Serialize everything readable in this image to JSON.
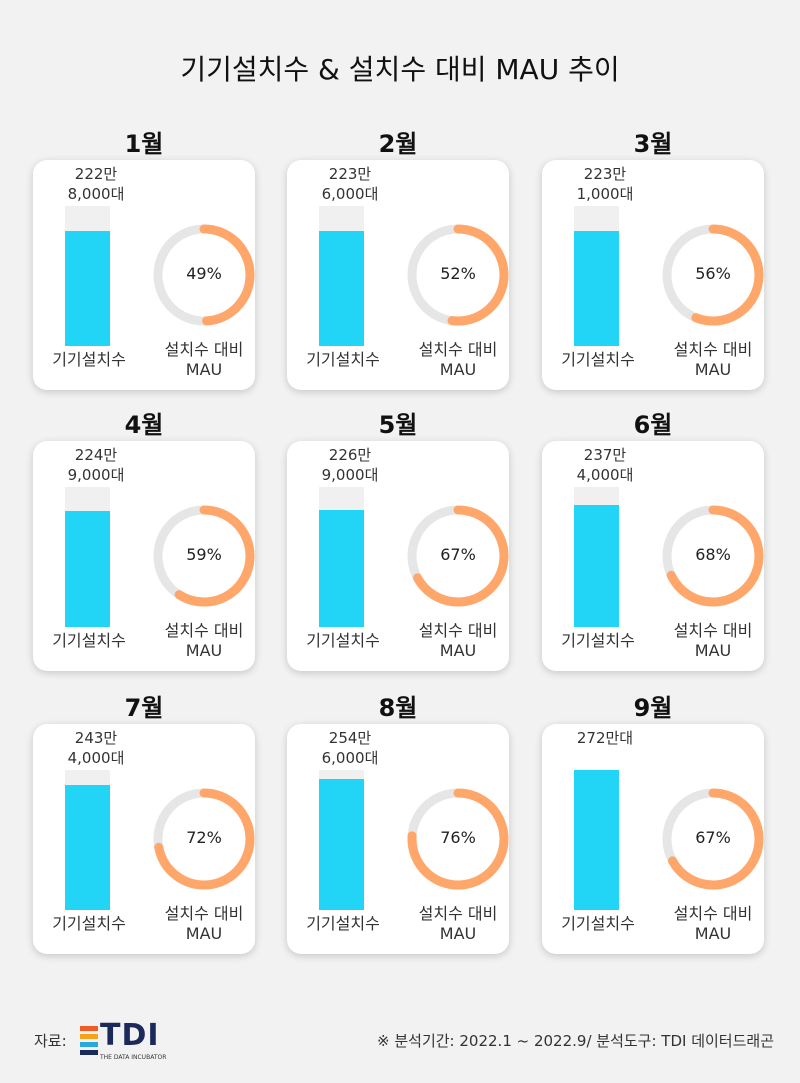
{
  "title": "기기설치수 & 설치수 대비 MAU 추이",
  "series_labels": {
    "installs": "기기설치수",
    "mau_ratio_line1": "설치수 대비",
    "mau_ratio_line2": "MAU"
  },
  "colors": {
    "bar": "#22d4f5",
    "bar_track": "#f0f0f0",
    "donut": "#ffa66b",
    "donut_track": "#e6e6e6"
  },
  "chart_data": {
    "type": "bar",
    "title": "기기설치수 & 설치수 대비 MAU 추이",
    "categories": [
      "1월",
      "2월",
      "3월",
      "4월",
      "5월",
      "6월",
      "7월",
      "8월",
      "9월"
    ],
    "series": [
      {
        "name": "기기설치수",
        "values": [
          2228000,
          2236000,
          2231000,
          2249000,
          2269000,
          2374000,
          2434000,
          2546000,
          2720000
        ],
        "labels": [
          [
            "222만",
            "8,000대"
          ],
          [
            "223만",
            "6,000대"
          ],
          [
            "223만",
            "1,000대"
          ],
          [
            "224만",
            "9,000대"
          ],
          [
            "226만",
            "9,000대"
          ],
          [
            "237만",
            "4,000대"
          ],
          [
            "243만",
            "4,000대"
          ],
          [
            "254만",
            "6,000대"
          ],
          [
            "272만대"
          ]
        ]
      },
      {
        "name": "설치수 대비 MAU",
        "values": [
          49,
          52,
          56,
          59,
          67,
          68,
          72,
          76,
          67
        ],
        "labels": [
          "49%",
          "52%",
          "56%",
          "59%",
          "67%",
          "68%",
          "72%",
          "76%",
          "67%"
        ]
      }
    ]
  },
  "footer": {
    "source_label": "자료:",
    "logo_text": "TDI",
    "logo_subtitle": "THE DATA INCUBATOR",
    "note": "※ 분석기간: 2022.1 ~ 2022.9/ 분석도구: TDI 데이터드래곤"
  }
}
